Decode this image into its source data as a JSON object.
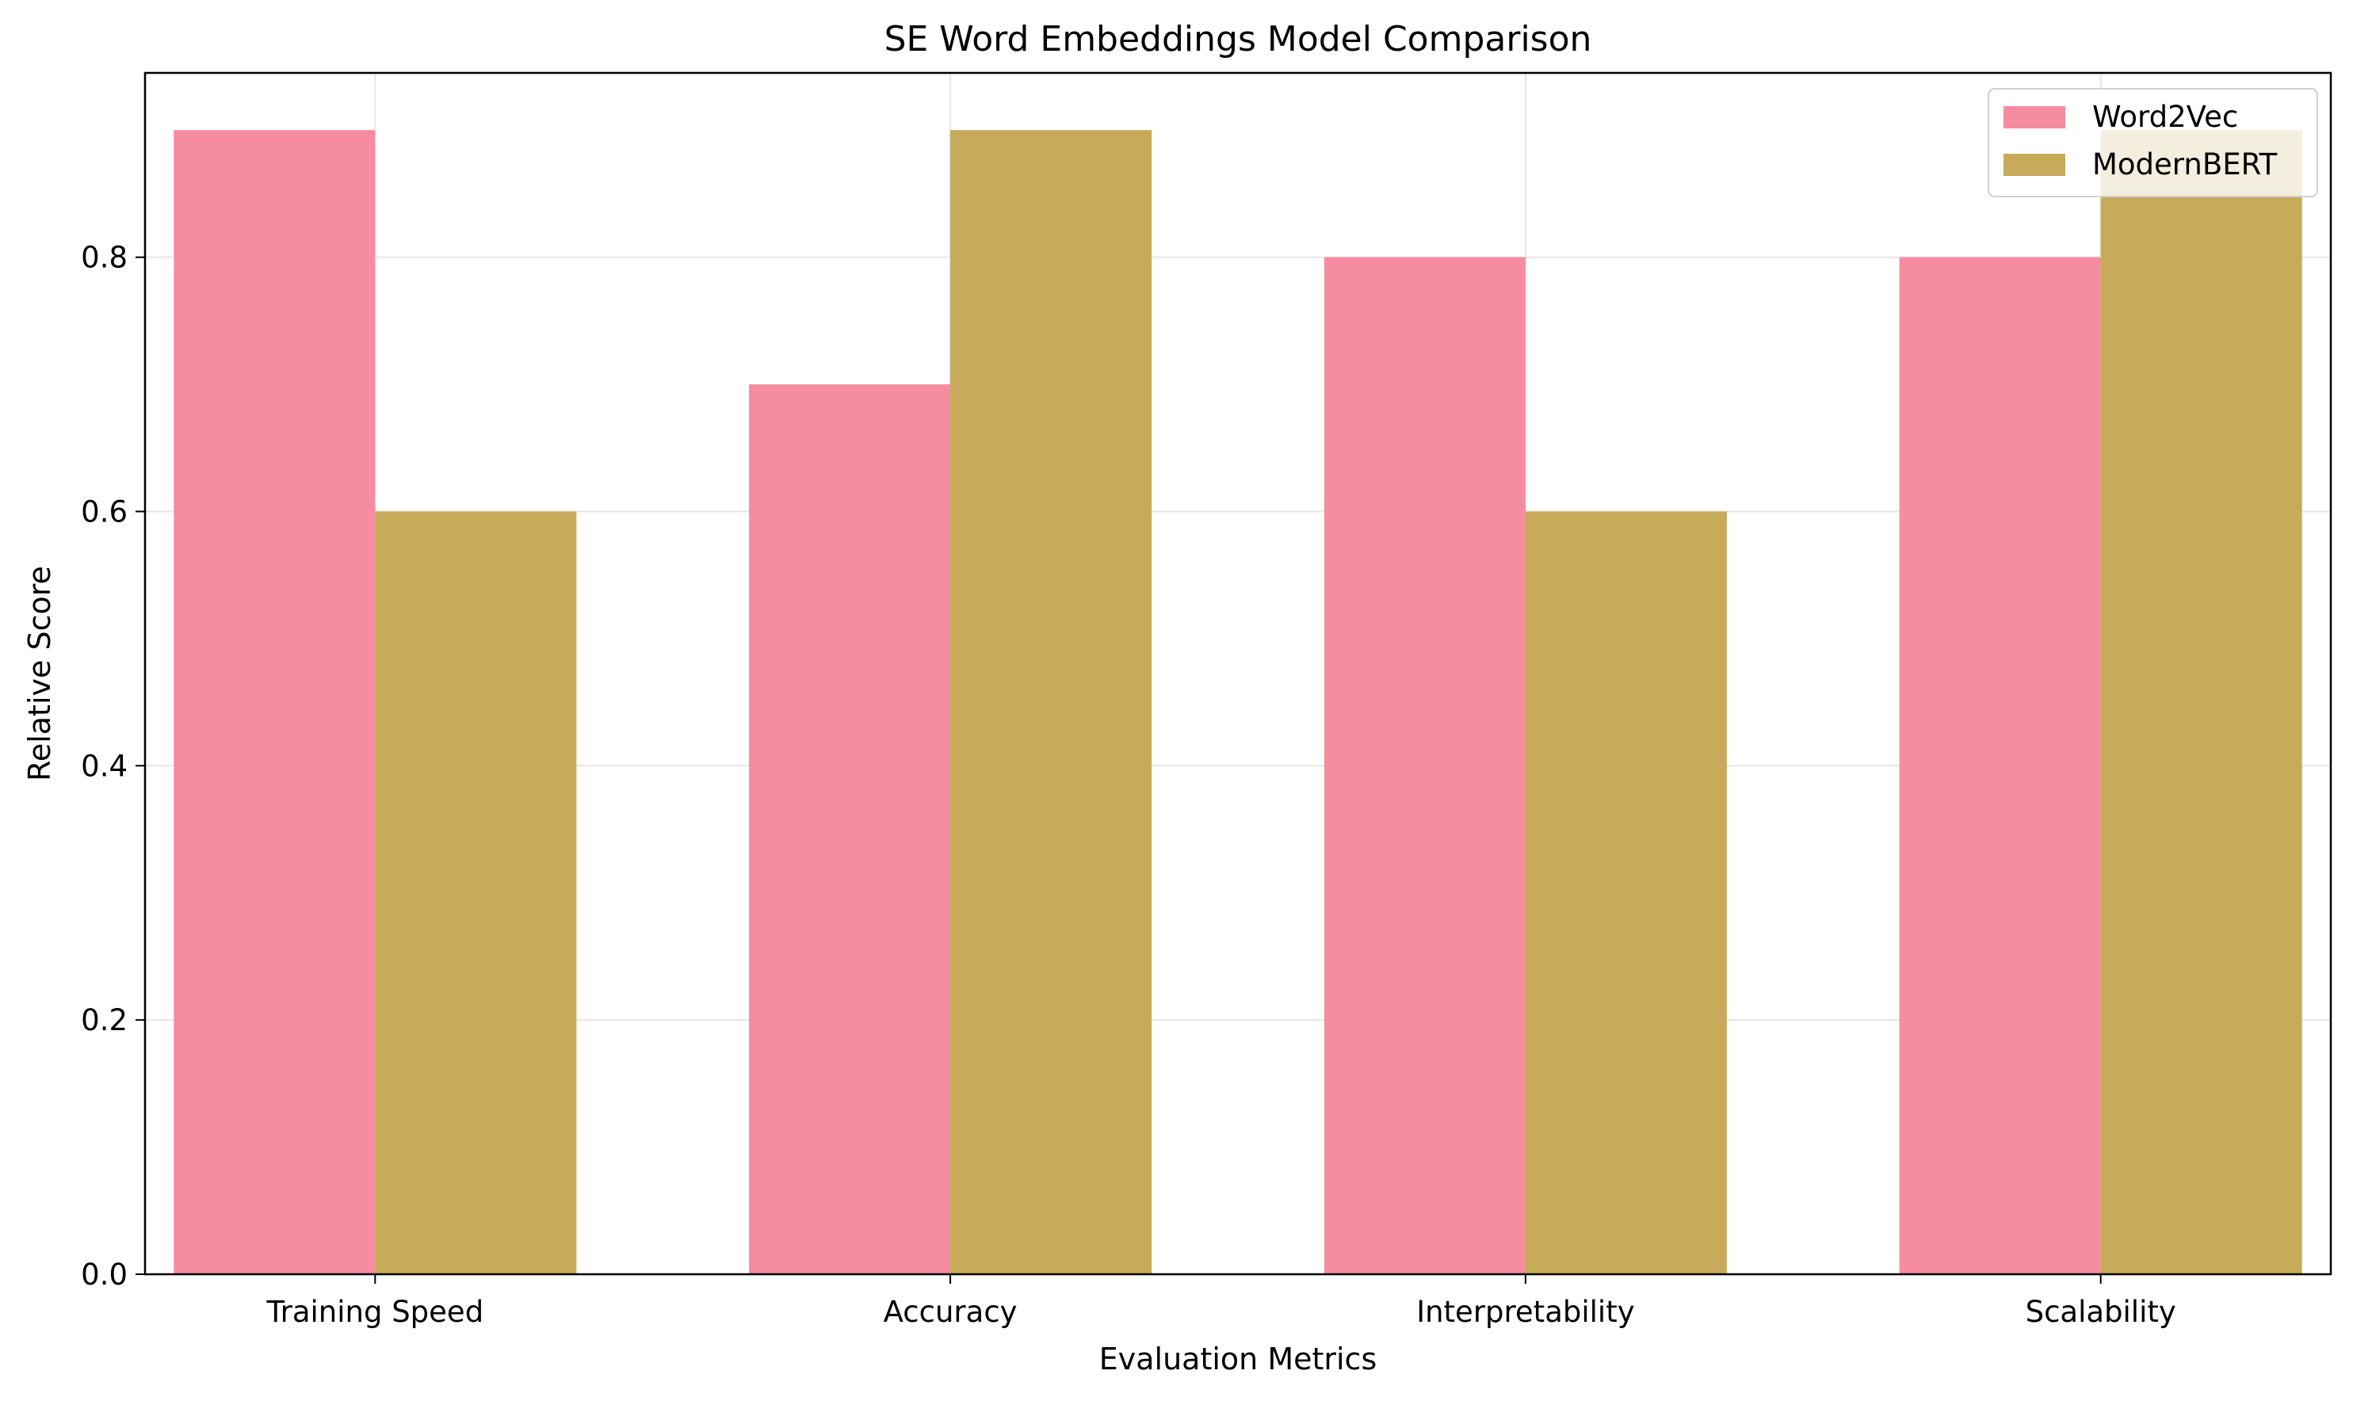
{
  "chart_data": {
    "type": "bar",
    "title": "SE Word Embeddings Model Comparison",
    "xlabel": "Evaluation Metrics",
    "ylabel": "Relative Score",
    "categories": [
      "Training Speed",
      "Accuracy",
      "Interpretability",
      "Scalability"
    ],
    "series": [
      {
        "name": "Word2Vec",
        "values": [
          0.9,
          0.7,
          0.8,
          0.8
        ],
        "color": "#f68c9f"
      },
      {
        "name": "ModernBERT",
        "values": [
          0.6,
          0.9,
          0.6,
          0.9
        ],
        "color": "#c7aa5a"
      }
    ],
    "ylim": [
      0,
      0.945
    ],
    "yticks": [
      0.0,
      0.2,
      0.4,
      0.6,
      0.8
    ],
    "ytick_labels": [
      "0.0",
      "0.2",
      "0.4",
      "0.6",
      "0.8"
    ],
    "grid": true,
    "legend_position": "upper right"
  }
}
